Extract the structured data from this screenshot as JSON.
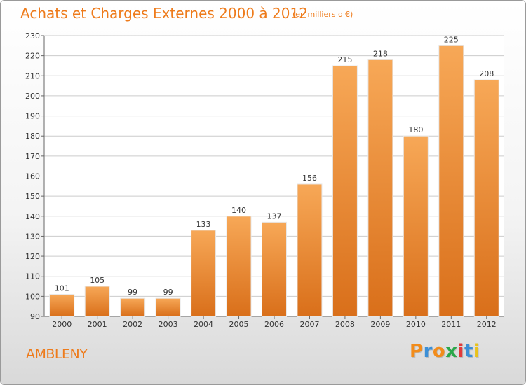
{
  "header": {
    "title": "Achats et Charges Externes 2000 à 2012",
    "subtitle": "(en milliers d'€)"
  },
  "footer": {
    "commune": "AMBLENY",
    "logo_text": "Proxiti"
  },
  "colors": {
    "accent": "#ee7b1b",
    "bar_top": "#f7a857",
    "bar_bottom": "#d96f1a",
    "grid": "#cccccc"
  },
  "chart_data": {
    "type": "bar",
    "title": "Achats et Charges Externes 2000 à 2012",
    "xlabel": "",
    "ylabel": "",
    "categories": [
      "2000",
      "2001",
      "2002",
      "2003",
      "2004",
      "2005",
      "2006",
      "2007",
      "2008",
      "2009",
      "2010",
      "2011",
      "2012"
    ],
    "values": [
      101,
      105,
      99,
      99,
      133,
      140,
      137,
      156,
      215,
      218,
      180,
      225,
      208
    ],
    "ylim": [
      90,
      230
    ],
    "yticks": [
      90,
      100,
      110,
      120,
      130,
      140,
      150,
      160,
      170,
      180,
      190,
      200,
      210,
      220,
      230
    ],
    "grid": true
  }
}
